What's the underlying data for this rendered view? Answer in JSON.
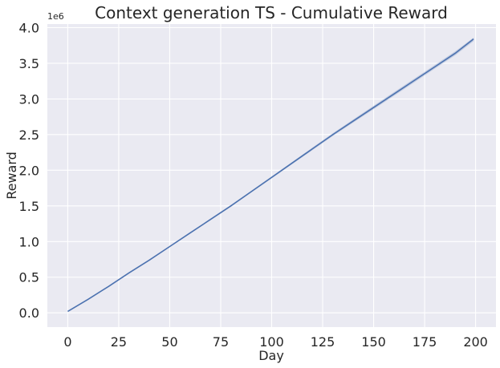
{
  "chart_data": {
    "type": "line",
    "title": "Context generation TS - Cumulative Reward",
    "xlabel": "Day",
    "ylabel": "Reward",
    "y_offset_label": "1e6",
    "xlim": [
      -10,
      210
    ],
    "ylim": [
      -0.2,
      4.05
    ],
    "x_ticks": [
      0,
      25,
      50,
      75,
      100,
      125,
      150,
      175,
      200
    ],
    "y_ticks": [
      0.0,
      0.5,
      1.0,
      1.5,
      2.0,
      2.5,
      3.0,
      3.5,
      4.0
    ],
    "y_tick_labels": [
      "0.0",
      "0.5",
      "1.0",
      "1.5",
      "2.0",
      "2.5",
      "3.0",
      "3.5",
      "4.0"
    ],
    "x_tick_labels": [
      "0",
      "25",
      "50",
      "75",
      "100",
      "125",
      "150",
      "175",
      "200"
    ],
    "grid": true,
    "colors": {
      "background": "#eaeaf2",
      "line": "#4c72b0"
    },
    "series": [
      {
        "x": [
          0,
          10,
          20,
          30,
          40,
          50,
          60,
          70,
          80,
          90,
          100,
          110,
          120,
          130,
          140,
          150,
          160,
          170,
          180,
          190,
          199
        ],
        "y": [
          0.02,
          0.19,
          0.37,
          0.56,
          0.74,
          0.93,
          1.12,
          1.31,
          1.5,
          1.7,
          1.9,
          2.1,
          2.3,
          2.5,
          2.69,
          2.88,
          3.07,
          3.26,
          3.45,
          3.64,
          3.84
        ],
        "band_low": [
          0.02,
          0.185,
          0.365,
          0.553,
          0.733,
          0.922,
          1.11,
          1.3,
          1.488,
          1.688,
          1.886,
          2.085,
          2.282,
          2.48,
          2.668,
          2.855,
          3.044,
          3.234,
          3.424,
          3.612,
          3.81
        ],
        "band_high": [
          0.02,
          0.195,
          0.375,
          0.567,
          0.747,
          0.938,
          1.13,
          1.32,
          1.512,
          1.712,
          1.914,
          2.115,
          2.318,
          2.52,
          2.712,
          2.905,
          3.096,
          3.286,
          3.476,
          3.668,
          3.86
        ]
      }
    ]
  }
}
